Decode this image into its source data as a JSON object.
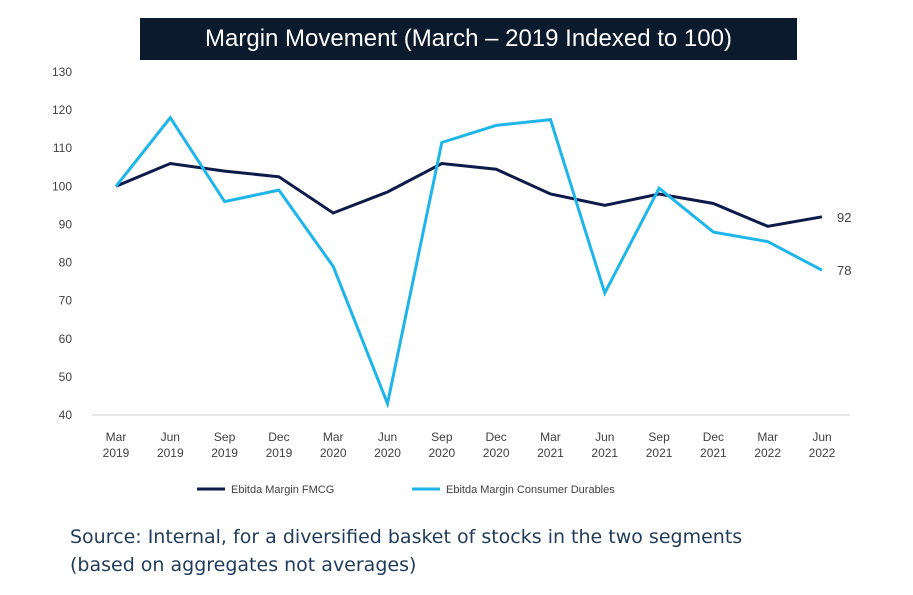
{
  "chart_data": {
    "type": "line",
    "title": "Margin Movement (March – 2019 Indexed to 100)",
    "categories": [
      [
        "Mar",
        "2019"
      ],
      [
        "Jun",
        "2019"
      ],
      [
        "Sep",
        "2019"
      ],
      [
        "Dec",
        "2019"
      ],
      [
        "Mar",
        "2020"
      ],
      [
        "Jun",
        "2020"
      ],
      [
        "Sep",
        "2020"
      ],
      [
        "Dec",
        "2020"
      ],
      [
        "Mar",
        "2021"
      ],
      [
        "Jun",
        "2021"
      ],
      [
        "Sep",
        "2021"
      ],
      [
        "Dec",
        "2021"
      ],
      [
        "Mar",
        "2022"
      ],
      [
        "Jun",
        "2022"
      ]
    ],
    "ylim": [
      40,
      130
    ],
    "yticks": [
      40,
      50,
      60,
      70,
      80,
      90,
      100,
      110,
      120,
      130
    ],
    "grid": false,
    "legend_position": "bottom",
    "series": [
      {
        "name": "Ebitda Margin FMCG",
        "color": "#0d1a4a",
        "values": [
          100,
          106,
          104,
          102.5,
          93,
          98.5,
          106,
          104.5,
          98,
          95,
          98,
          95.5,
          89.5,
          92
        ],
        "end_label": "92"
      },
      {
        "name": "Ebitda Margin Consumer Durables",
        "color": "#1eb6ea",
        "values": [
          100,
          118,
          96,
          99,
          79,
          43,
          111.5,
          116,
          117.5,
          72,
          99.5,
          88,
          85.5,
          78
        ],
        "end_label": "78"
      }
    ]
  },
  "source": {
    "line1": "Source: Internal, for a diversified basket of stocks in the two segments",
    "line2": "(based on aggregates not averages)"
  }
}
